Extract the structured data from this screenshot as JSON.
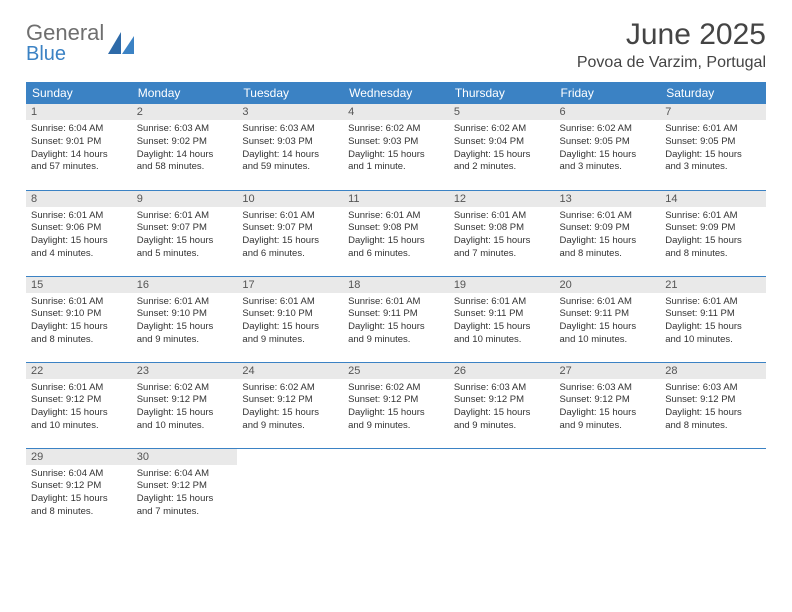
{
  "logo": {
    "line1": "General",
    "line2": "Blue"
  },
  "title": "June 2025",
  "location": "Povoa de Varzim, Portugal",
  "header_bg": "#3b82c4",
  "weekdays": [
    "Sunday",
    "Monday",
    "Tuesday",
    "Wednesday",
    "Thursday",
    "Friday",
    "Saturday"
  ],
  "weeks": [
    [
      {
        "n": "1",
        "sr": "Sunrise: 6:04 AM",
        "ss": "Sunset: 9:01 PM",
        "d1": "Daylight: 14 hours",
        "d2": "and 57 minutes."
      },
      {
        "n": "2",
        "sr": "Sunrise: 6:03 AM",
        "ss": "Sunset: 9:02 PM",
        "d1": "Daylight: 14 hours",
        "d2": "and 58 minutes."
      },
      {
        "n": "3",
        "sr": "Sunrise: 6:03 AM",
        "ss": "Sunset: 9:03 PM",
        "d1": "Daylight: 14 hours",
        "d2": "and 59 minutes."
      },
      {
        "n": "4",
        "sr": "Sunrise: 6:02 AM",
        "ss": "Sunset: 9:03 PM",
        "d1": "Daylight: 15 hours",
        "d2": "and 1 minute."
      },
      {
        "n": "5",
        "sr": "Sunrise: 6:02 AM",
        "ss": "Sunset: 9:04 PM",
        "d1": "Daylight: 15 hours",
        "d2": "and 2 minutes."
      },
      {
        "n": "6",
        "sr": "Sunrise: 6:02 AM",
        "ss": "Sunset: 9:05 PM",
        "d1": "Daylight: 15 hours",
        "d2": "and 3 minutes."
      },
      {
        "n": "7",
        "sr": "Sunrise: 6:01 AM",
        "ss": "Sunset: 9:05 PM",
        "d1": "Daylight: 15 hours",
        "d2": "and 3 minutes."
      }
    ],
    [
      {
        "n": "8",
        "sr": "Sunrise: 6:01 AM",
        "ss": "Sunset: 9:06 PM",
        "d1": "Daylight: 15 hours",
        "d2": "and 4 minutes."
      },
      {
        "n": "9",
        "sr": "Sunrise: 6:01 AM",
        "ss": "Sunset: 9:07 PM",
        "d1": "Daylight: 15 hours",
        "d2": "and 5 minutes."
      },
      {
        "n": "10",
        "sr": "Sunrise: 6:01 AM",
        "ss": "Sunset: 9:07 PM",
        "d1": "Daylight: 15 hours",
        "d2": "and 6 minutes."
      },
      {
        "n": "11",
        "sr": "Sunrise: 6:01 AM",
        "ss": "Sunset: 9:08 PM",
        "d1": "Daylight: 15 hours",
        "d2": "and 6 minutes."
      },
      {
        "n": "12",
        "sr": "Sunrise: 6:01 AM",
        "ss": "Sunset: 9:08 PM",
        "d1": "Daylight: 15 hours",
        "d2": "and 7 minutes."
      },
      {
        "n": "13",
        "sr": "Sunrise: 6:01 AM",
        "ss": "Sunset: 9:09 PM",
        "d1": "Daylight: 15 hours",
        "d2": "and 8 minutes."
      },
      {
        "n": "14",
        "sr": "Sunrise: 6:01 AM",
        "ss": "Sunset: 9:09 PM",
        "d1": "Daylight: 15 hours",
        "d2": "and 8 minutes."
      }
    ],
    [
      {
        "n": "15",
        "sr": "Sunrise: 6:01 AM",
        "ss": "Sunset: 9:10 PM",
        "d1": "Daylight: 15 hours",
        "d2": "and 8 minutes."
      },
      {
        "n": "16",
        "sr": "Sunrise: 6:01 AM",
        "ss": "Sunset: 9:10 PM",
        "d1": "Daylight: 15 hours",
        "d2": "and 9 minutes."
      },
      {
        "n": "17",
        "sr": "Sunrise: 6:01 AM",
        "ss": "Sunset: 9:10 PM",
        "d1": "Daylight: 15 hours",
        "d2": "and 9 minutes."
      },
      {
        "n": "18",
        "sr": "Sunrise: 6:01 AM",
        "ss": "Sunset: 9:11 PM",
        "d1": "Daylight: 15 hours",
        "d2": "and 9 minutes."
      },
      {
        "n": "19",
        "sr": "Sunrise: 6:01 AM",
        "ss": "Sunset: 9:11 PM",
        "d1": "Daylight: 15 hours",
        "d2": "and 10 minutes."
      },
      {
        "n": "20",
        "sr": "Sunrise: 6:01 AM",
        "ss": "Sunset: 9:11 PM",
        "d1": "Daylight: 15 hours",
        "d2": "and 10 minutes."
      },
      {
        "n": "21",
        "sr": "Sunrise: 6:01 AM",
        "ss": "Sunset: 9:11 PM",
        "d1": "Daylight: 15 hours",
        "d2": "and 10 minutes."
      }
    ],
    [
      {
        "n": "22",
        "sr": "Sunrise: 6:01 AM",
        "ss": "Sunset: 9:12 PM",
        "d1": "Daylight: 15 hours",
        "d2": "and 10 minutes."
      },
      {
        "n": "23",
        "sr": "Sunrise: 6:02 AM",
        "ss": "Sunset: 9:12 PM",
        "d1": "Daylight: 15 hours",
        "d2": "and 10 minutes."
      },
      {
        "n": "24",
        "sr": "Sunrise: 6:02 AM",
        "ss": "Sunset: 9:12 PM",
        "d1": "Daylight: 15 hours",
        "d2": "and 9 minutes."
      },
      {
        "n": "25",
        "sr": "Sunrise: 6:02 AM",
        "ss": "Sunset: 9:12 PM",
        "d1": "Daylight: 15 hours",
        "d2": "and 9 minutes."
      },
      {
        "n": "26",
        "sr": "Sunrise: 6:03 AM",
        "ss": "Sunset: 9:12 PM",
        "d1": "Daylight: 15 hours",
        "d2": "and 9 minutes."
      },
      {
        "n": "27",
        "sr": "Sunrise: 6:03 AM",
        "ss": "Sunset: 9:12 PM",
        "d1": "Daylight: 15 hours",
        "d2": "and 9 minutes."
      },
      {
        "n": "28",
        "sr": "Sunrise: 6:03 AM",
        "ss": "Sunset: 9:12 PM",
        "d1": "Daylight: 15 hours",
        "d2": "and 8 minutes."
      }
    ],
    [
      {
        "n": "29",
        "sr": "Sunrise: 6:04 AM",
        "ss": "Sunset: 9:12 PM",
        "d1": "Daylight: 15 hours",
        "d2": "and 8 minutes."
      },
      {
        "n": "30",
        "sr": "Sunrise: 6:04 AM",
        "ss": "Sunset: 9:12 PM",
        "d1": "Daylight: 15 hours",
        "d2": "and 7 minutes."
      },
      null,
      null,
      null,
      null,
      null
    ]
  ]
}
